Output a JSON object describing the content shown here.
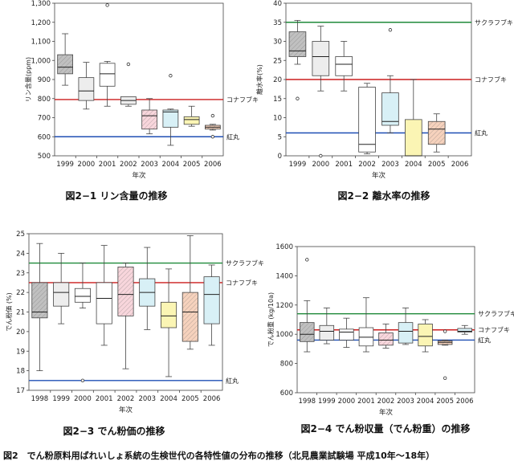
{
  "figure_caption": "図2　でん粉原料用ばれいしょ系統の生検世代の各特性値の分布の推移（北見農業試験場 平成10年～18年）",
  "chart_data": [
    {
      "type": "box",
      "title": "図2−1 リン含量の推移",
      "ylabel": "リン含量(ppm)",
      "xlabel": "年次",
      "categories": [
        "1999",
        "2000",
        "2001",
        "2002",
        "2003",
        "2004",
        "2005",
        "2006"
      ],
      "ylim": [
        500,
        1300
      ],
      "yticks": [
        500,
        600,
        700,
        800,
        900,
        1000,
        1100,
        1200,
        1300
      ],
      "ytick_labels": [
        "500",
        "600",
        "700",
        "800",
        "900",
        "1,000",
        "1,100",
        "1,200",
        "1,300"
      ],
      "boxes": [
        {
          "year": "1999",
          "min": 870,
          "q1": 930,
          "median": 965,
          "q3": 1030,
          "max": 1140,
          "outliers": [],
          "fill": "#c0c0c0",
          "pattern": "hatch"
        },
        {
          "year": "2000",
          "min": 745,
          "q1": 790,
          "median": 840,
          "q3": 910,
          "max": 990,
          "outliers": [],
          "fill": "#ededed",
          "pattern": "none"
        },
        {
          "year": "2001",
          "min": 760,
          "q1": 865,
          "median": 930,
          "q3": 985,
          "max": 995,
          "outliers": [
            1290
          ],
          "fill": "#ffffff",
          "pattern": "none"
        },
        {
          "year": "2002",
          "min": 760,
          "q1": 770,
          "median": 790,
          "q3": 810,
          "max": 810,
          "outliers": [
            980
          ],
          "fill": "#ededed",
          "pattern": "none"
        },
        {
          "year": "2003",
          "min": 615,
          "q1": 640,
          "median": 710,
          "q3": 740,
          "max": 800,
          "outliers": [],
          "fill": "#f8d6dc",
          "pattern": "hatch"
        },
        {
          "year": "2004",
          "min": 555,
          "q1": 650,
          "median": 730,
          "q3": 740,
          "max": 745,
          "outliers": [
            920
          ],
          "fill": "#d8f0f6",
          "pattern": "none"
        },
        {
          "year": "2005",
          "min": 655,
          "q1": 665,
          "median": 690,
          "q3": 705,
          "max": 760,
          "outliers": [],
          "fill": "#fbf5b4",
          "pattern": "none"
        },
        {
          "year": "2006",
          "min": 635,
          "q1": 640,
          "median": 650,
          "q3": 660,
          "max": 665,
          "outliers": [
            600,
            710
          ],
          "fill": "#f6d2bd",
          "pattern": "hatch"
        }
      ],
      "reference_lines": [
        {
          "label": "コナフブキ",
          "value": 795,
          "color": "#cc1f1f"
        },
        {
          "label": "紅丸",
          "value": 600,
          "color": "#1f4fb4"
        }
      ]
    },
    {
      "type": "box",
      "title": "図2−2 離水率の推移",
      "ylabel": "離水率(%)",
      "xlabel": "年次",
      "categories": [
        "1999",
        "2000",
        "2001",
        "2002",
        "2003",
        "2004",
        "2005",
        "2006"
      ],
      "ylim": [
        0,
        40
      ],
      "yticks": [
        0,
        5,
        10,
        15,
        20,
        25,
        30,
        35,
        40
      ],
      "ytick_labels": [
        "0",
        "5",
        "10",
        "15",
        "20",
        "25",
        "30",
        "35",
        "40"
      ],
      "boxes": [
        {
          "year": "1999",
          "min": 24,
          "q1": 26,
          "median": 27.5,
          "q3": 32.5,
          "max": 35.5,
          "outliers": [
            15
          ],
          "fill": "#c0c0c0",
          "pattern": "hatch"
        },
        {
          "year": "2000",
          "min": 17,
          "q1": 21,
          "median": 26,
          "q3": 30,
          "max": 34,
          "outliers": [
            0
          ],
          "fill": "#ededed",
          "pattern": "none"
        },
        {
          "year": "2001",
          "min": 17,
          "q1": 21,
          "median": 24,
          "q3": 26,
          "max": 30,
          "outliers": [],
          "fill": "#ffffff",
          "pattern": "none"
        },
        {
          "year": "2002",
          "min": 0.5,
          "q1": 1,
          "median": 3,
          "q3": 18,
          "max": 19,
          "outliers": [],
          "fill": "#ffffff",
          "pattern": "none"
        },
        {
          "year": "2003",
          "min": 6,
          "q1": 8,
          "median": 9,
          "q3": 16.5,
          "max": 21,
          "outliers": [
            33
          ],
          "fill": "#d8f0f6",
          "pattern": "none"
        },
        {
          "year": "2004",
          "min": 0,
          "q1": 0,
          "median": 0,
          "q3": 9.5,
          "max": 20,
          "outliers": [],
          "fill": "#fbf5b4",
          "pattern": "none"
        },
        {
          "year": "2005",
          "min": 1,
          "q1": 3,
          "median": 7,
          "q3": 9,
          "max": 11,
          "outliers": [],
          "fill": "#f6d2bd",
          "pattern": "hatch"
        }
      ],
      "reference_lines": [
        {
          "label": "サクラフブキ",
          "value": 35,
          "color": "#1f8a3a"
        },
        {
          "label": "コナフブキ",
          "value": 20,
          "color": "#cc1f1f"
        },
        {
          "label": "紅丸",
          "value": 6,
          "color": "#1f4fb4"
        }
      ]
    },
    {
      "type": "box",
      "title": "図2−3 でん粉価の推移",
      "ylabel": "でん粉価 (%)",
      "xlabel": "年次",
      "categories": [
        "1998",
        "1999",
        "2000",
        "2001",
        "2002",
        "2003",
        "2004",
        "2005",
        "2006"
      ],
      "ylim": [
        17,
        25
      ],
      "yticks": [
        17,
        18,
        19,
        20,
        21,
        22,
        23,
        24,
        25
      ],
      "ytick_labels": [
        "17",
        "18",
        "19",
        "20",
        "21",
        "22",
        "23",
        "24",
        "25"
      ],
      "boxes": [
        {
          "year": "1998",
          "min": 18,
          "q1": 20.7,
          "median": 21,
          "q3": 22.5,
          "max": 24.5,
          "outliers": [],
          "fill": "#c0c0c0",
          "pattern": "hatch"
        },
        {
          "year": "1999",
          "min": 20.4,
          "q1": 21.3,
          "median": 22,
          "q3": 22.5,
          "max": 24,
          "outliers": [],
          "fill": "#ededed",
          "pattern": "none"
        },
        {
          "year": "2000",
          "min": 21.2,
          "q1": 21.5,
          "median": 21.8,
          "q3": 22.2,
          "max": 23.5,
          "outliers": [
            17.5
          ],
          "fill": "#ffffff",
          "pattern": "none"
        },
        {
          "year": "2001",
          "min": 19.3,
          "q1": 20.4,
          "median": 21.7,
          "q3": 22.5,
          "max": 24.4,
          "outliers": [],
          "fill": "#ffffff",
          "pattern": "none"
        },
        {
          "year": "2002",
          "min": 18.1,
          "q1": 20.8,
          "median": 21.9,
          "q3": 23.3,
          "max": 23.5,
          "outliers": [],
          "fill": "#f8d6dc",
          "pattern": "hatch"
        },
        {
          "year": "2003",
          "min": 20.1,
          "q1": 21.3,
          "median": 22,
          "q3": 22.7,
          "max": 24.3,
          "outliers": [],
          "fill": "#d8f0f6",
          "pattern": "none"
        },
        {
          "year": "2004",
          "min": 17.7,
          "q1": 20.2,
          "median": 20.8,
          "q3": 21.5,
          "max": 23.2,
          "outliers": [],
          "fill": "#fbf5b4",
          "pattern": "none"
        },
        {
          "year": "2005",
          "min": 19.1,
          "q1": 19.5,
          "median": 21,
          "q3": 22,
          "max": 24.9,
          "outliers": [],
          "fill": "#f6d2bd",
          "pattern": "hatch"
        },
        {
          "year": "2006",
          "min": 19.3,
          "q1": 20.4,
          "median": 21.9,
          "q3": 22.8,
          "max": 23.4,
          "outliers": [],
          "fill": "#d8f0f6",
          "pattern": "none"
        }
      ],
      "reference_lines": [
        {
          "label": "サクラフブキ",
          "value": 23.5,
          "color": "#1f8a3a"
        },
        {
          "label": "コナフブキ",
          "value": 22.5,
          "color": "#cc1f1f"
        },
        {
          "label": "紅丸",
          "value": 17.5,
          "color": "#1f4fb4"
        }
      ]
    },
    {
      "type": "box",
      "title": "図2−4 でん粉収量（でん粉重）の推移",
      "ylabel": "でん粉重 (kg/10a)",
      "xlabel": "年次",
      "categories": [
        "1998",
        "1999",
        "2000",
        "2001",
        "2002",
        "2003",
        "2004",
        "2005",
        "2006"
      ],
      "ylim": [
        600,
        1600
      ],
      "yticks": [
        600,
        800,
        1000,
        1200,
        1400,
        1600
      ],
      "ytick_labels": [
        "600",
        "800",
        "1000",
        "1200",
        "1400",
        "1600"
      ],
      "boxes": [
        {
          "year": "1998",
          "min": 880,
          "q1": 950,
          "median": 1000,
          "q3": 1080,
          "max": 1230,
          "outliers": [
            1510
          ],
          "fill": "#c0c0c0",
          "pattern": "hatch"
        },
        {
          "year": "1999",
          "min": 935,
          "q1": 960,
          "median": 1020,
          "q3": 1060,
          "max": 1180,
          "outliers": [],
          "fill": "#ededed",
          "pattern": "none"
        },
        {
          "year": "2000",
          "min": 910,
          "q1": 960,
          "median": 1015,
          "q3": 1035,
          "max": 1110,
          "outliers": [],
          "fill": "#ffffff",
          "pattern": "none"
        },
        {
          "year": "2001",
          "min": 880,
          "q1": 920,
          "median": 980,
          "q3": 1045,
          "max": 1250,
          "outliers": [],
          "fill": "#ffffff",
          "pattern": "none"
        },
        {
          "year": "2002",
          "min": 905,
          "q1": 925,
          "median": 960,
          "q3": 1010,
          "max": 1070,
          "outliers": [],
          "fill": "#f8d6dc",
          "pattern": "hatch"
        },
        {
          "year": "2003",
          "min": 930,
          "q1": 940,
          "median": 1020,
          "q3": 1080,
          "max": 1180,
          "outliers": [],
          "fill": "#d8f0f6",
          "pattern": "none"
        },
        {
          "year": "2004",
          "min": 880,
          "q1": 920,
          "median": 985,
          "q3": 1070,
          "max": 1100,
          "outliers": [],
          "fill": "#fbf5b4",
          "pattern": "none"
        },
        {
          "year": "2005",
          "min": 925,
          "q1": 930,
          "median": 945,
          "q3": 955,
          "max": 960,
          "outliers": [
            700,
            1020
          ],
          "fill": "#f6d2bd",
          "pattern": "hatch"
        },
        {
          "year": "2006",
          "min": 1000,
          "q1": 1015,
          "median": 1020,
          "q3": 1040,
          "max": 1060,
          "outliers": [],
          "fill": "#d8f0f6",
          "pattern": "none"
        }
      ],
      "reference_lines": [
        {
          "label": "サクラフブキ",
          "value": 1140,
          "color": "#1f8a3a"
        },
        {
          "label": "コナフブキ",
          "value": 1030,
          "color": "#cc1f1f"
        },
        {
          "label": "紅丸",
          "value": 960,
          "color": "#1f4fb4"
        }
      ]
    }
  ]
}
